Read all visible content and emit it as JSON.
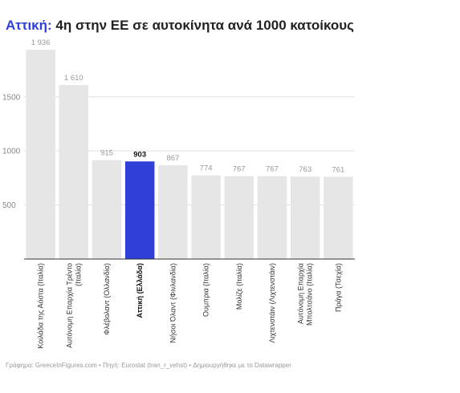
{
  "title": {
    "highlight": "Αττική:",
    "rest": " 4η στην ΕΕ σε αυτοκίνητα ανά 1000 κατοίκους"
  },
  "source": "Γράφημα: GreeceInFigures.com • Πηγή: Eurostat (tran_r_vehst) • Δημιουργήθηκε με το Datawrapper",
  "colors": {
    "bar": "#e6e6e6",
    "highlight": "#2f3fd8",
    "axis": "#333333",
    "grid": "#e0e0e0"
  },
  "chart_data": {
    "type": "bar",
    "title": "4η στην ΕΕ σε αυτοκίνητα ανά 1000 κατοίκους",
    "xlabel": "",
    "ylabel": "",
    "ylim": [
      0,
      1936
    ],
    "yticks": [
      500,
      1000,
      1500
    ],
    "grid": true,
    "highlight_index": 4,
    "categories": [
      [
        "Κοιλάδα της Αόστα (Ιταλία)"
      ],
      [
        "Αυτόνομη Επαρχία Τρέντο",
        "(Ιταλία)"
      ],
      [
        "Φλέβολαντ (Ολλανδία)"
      ],
      [
        "Αττική (Ελλάδα)"
      ],
      [
        "Νήσοι Όλαντ (Φινλανδία)"
      ],
      [
        "Ουμπρια (Ιταλία)"
      ],
      [
        "Μολίζε (Ιταλία)"
      ],
      [
        "Λιχτενστάιν (Λιχτενστάιν)"
      ],
      [
        "Αυτόνομη Επαρχία",
        "Μπολτσάνο (Ιταλία)"
      ],
      [
        "Πράγα (Τσεχία)"
      ]
    ],
    "values": [
      1936,
      1610,
      915,
      903,
      867,
      774,
      767,
      767,
      763,
      761
    ],
    "value_labels": [
      "1 936",
      "1 610",
      "915",
      "903",
      "867",
      "774",
      "767",
      "767",
      "763",
      "761"
    ]
  }
}
